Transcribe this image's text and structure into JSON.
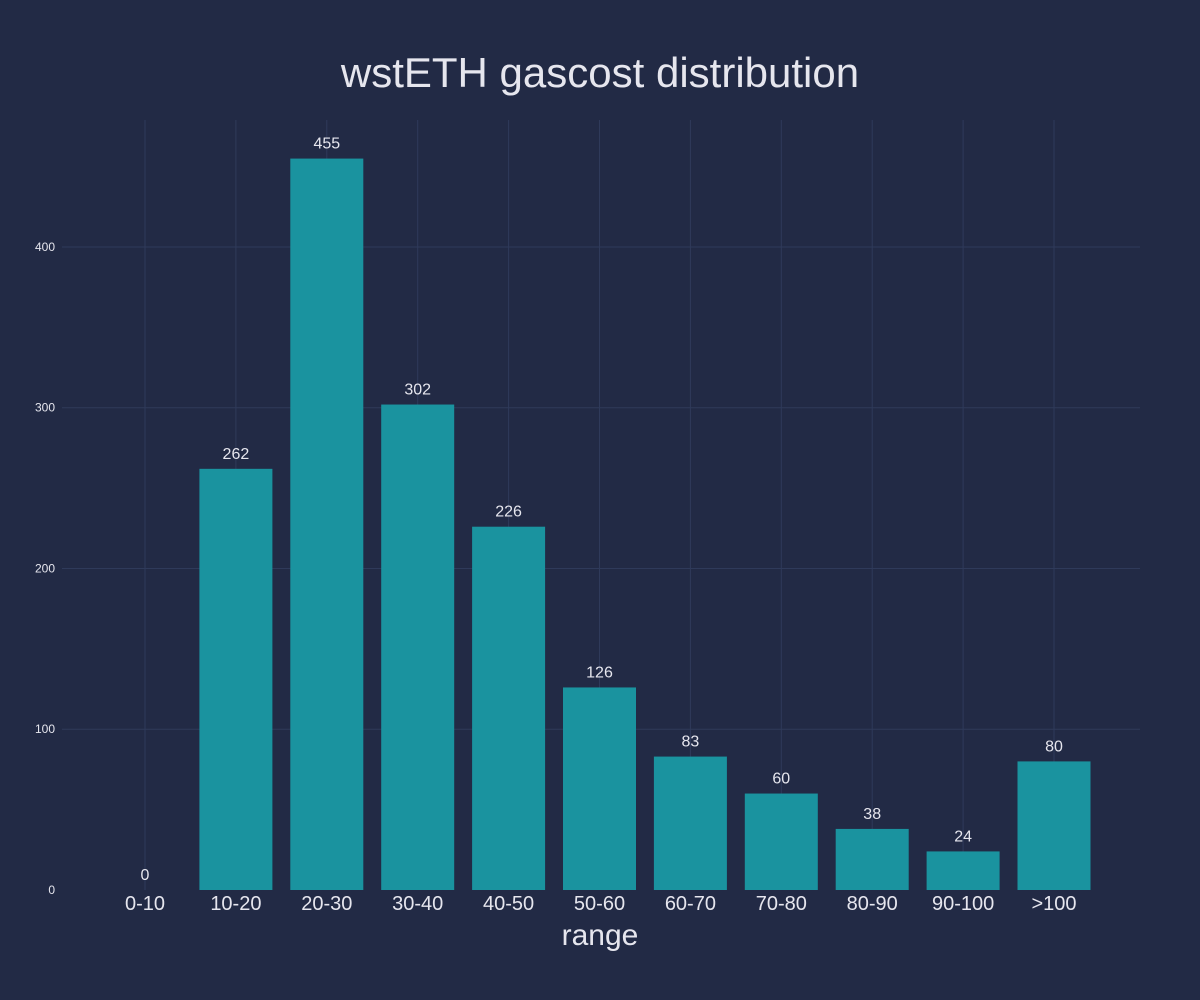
{
  "chart_data": {
    "type": "bar",
    "title": "wstETH gascost distribution",
    "xlabel": "range",
    "ylabel": "",
    "categories": [
      "0-10",
      "10-20",
      "20-30",
      "30-40",
      "40-50",
      "50-60",
      "60-70",
      "70-80",
      "80-90",
      "90-100",
      ">100"
    ],
    "values": [
      0,
      262,
      455,
      302,
      226,
      126,
      83,
      60,
      38,
      24,
      80
    ],
    "ylim": [
      0,
      479
    ],
    "yticks": [
      0,
      100,
      200,
      300,
      400
    ],
    "grid": true,
    "legend": "none",
    "colors": {
      "background": "#222a45",
      "bar": "#1a939f",
      "grid": "#2f3a5a",
      "text": "#e6e6ee"
    }
  }
}
